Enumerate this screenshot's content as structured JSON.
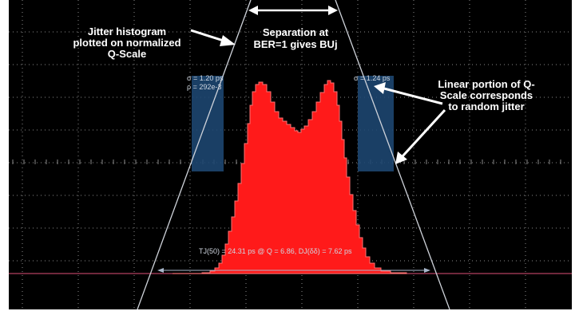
{
  "annotations": {
    "histogram_note": "Jitter histogram plotted on normalized  Q-Scale",
    "separation_note_line1": "Separation at",
    "separation_note_line2": "BER=1 gives BUj",
    "linear_note": "Linear portion of Q-Scale corresponds to random jitter"
  },
  "left_box": {
    "sigma": "σ = 1.20 ps",
    "rho": "ρ = 292e-3"
  },
  "right_box": {
    "sigma": "σ = 1.24 ps"
  },
  "measurement_text": "TJ(50) = 24.31 ps @ Q = 6.86, DJ(δδ) = 7.62 ps",
  "colors": {
    "histogram": "#ff1a1a",
    "histogram_edge": "#ff7373",
    "grid": "#8a8a8a",
    "fit_lines": "#cfd3da",
    "box_fill": "#1d4670",
    "baseline": "#b34060",
    "arrows": "#ffffff"
  }
}
